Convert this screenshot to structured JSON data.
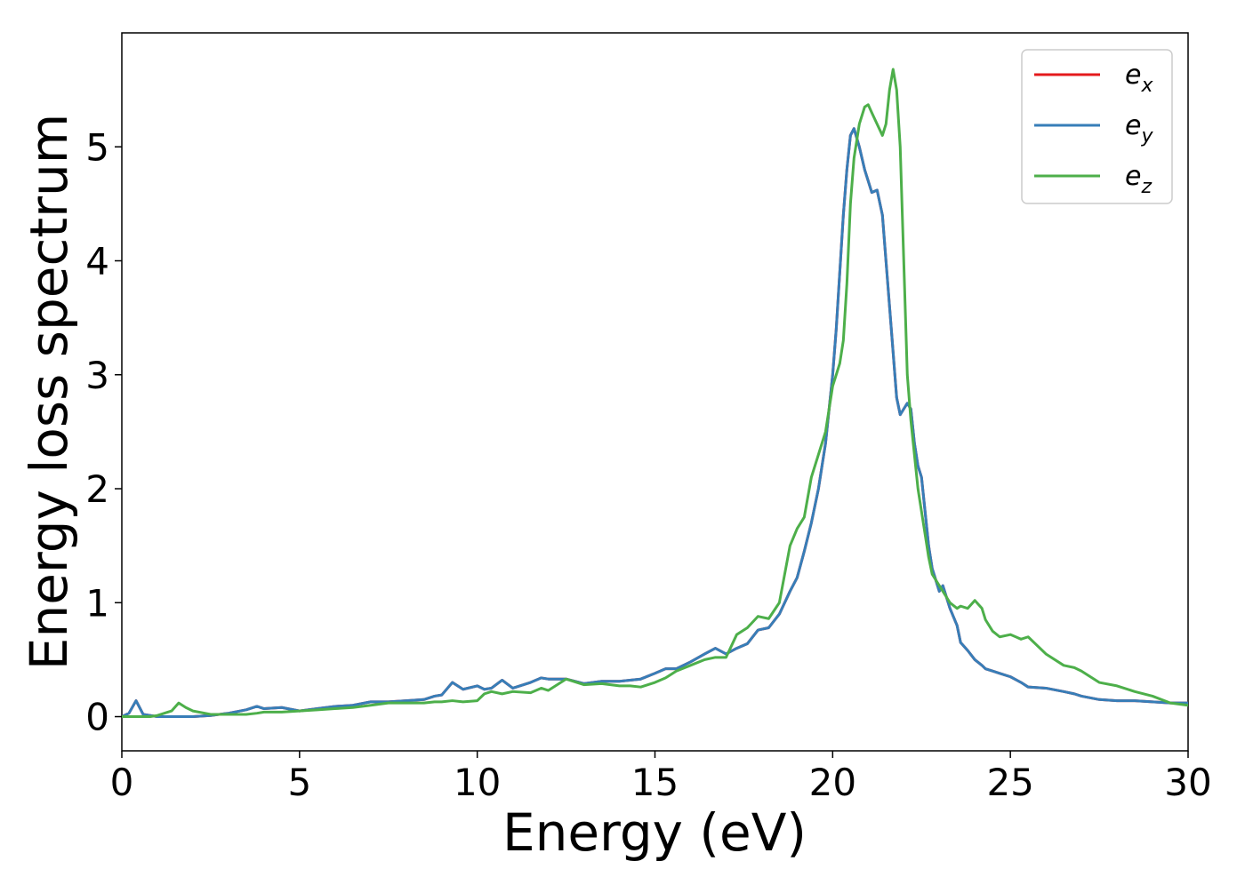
{
  "chart_data": {
    "type": "line",
    "title": "",
    "xlabel": "Energy (eV)",
    "ylabel": "Energy loss spectrum",
    "xlim": [
      0,
      30
    ],
    "ylim": [
      -0.3,
      6.0
    ],
    "xticks": [
      0,
      5,
      10,
      15,
      20,
      25,
      30
    ],
    "xtick_labels": [
      "0",
      "5",
      "10",
      "15",
      "20",
      "25",
      "30"
    ],
    "yticks": [
      0,
      1,
      2,
      3,
      4,
      5
    ],
    "ytick_labels": [
      "0",
      "1",
      "2",
      "3",
      "4",
      "5"
    ],
    "grid": false,
    "legend_position": "top-right",
    "x": [
      0,
      0.2,
      0.4,
      0.6,
      0.8,
      1.0,
      1.4,
      1.6,
      1.8,
      2.0,
      2.5,
      3.0,
      3.5,
      3.8,
      4.0,
      4.5,
      5.0,
      5.5,
      6.0,
      6.5,
      7.0,
      7.5,
      8.0,
      8.5,
      8.8,
      9.0,
      9.3,
      9.6,
      10.0,
      10.2,
      10.4,
      10.7,
      11.0,
      11.5,
      11.8,
      12.0,
      12.5,
      13.0,
      13.5,
      14.0,
      14.3,
      14.6,
      15.0,
      15.3,
      15.6,
      16.0,
      16.4,
      16.7,
      17.0,
      17.3,
      17.6,
      17.9,
      18.2,
      18.5,
      18.8,
      19.0,
      19.2,
      19.4,
      19.6,
      19.8,
      20.0,
      20.1,
      20.2,
      20.3,
      20.4,
      20.5,
      20.6,
      20.75,
      20.9,
      21.0,
      21.1,
      21.25,
      21.4,
      21.5,
      21.6,
      21.7,
      21.8,
      21.9,
      22.0,
      22.1,
      22.2,
      22.3,
      22.4,
      22.5,
      22.6,
      22.7,
      22.8,
      22.9,
      23.0,
      23.1,
      23.2,
      23.3,
      23.5,
      23.6,
      23.8,
      24.0,
      24.2,
      24.3,
      24.5,
      24.7,
      25.0,
      25.3,
      25.5,
      26.0,
      26.5,
      26.8,
      27.0,
      27.5,
      28.0,
      28.5,
      29.0,
      29.5,
      30.0
    ],
    "series": [
      {
        "name": "e_x",
        "label_base": "e",
        "label_sub": "x",
        "color": "#e41a1c",
        "values": [
          0.0,
          0.03,
          0.14,
          0.02,
          0.01,
          0.0,
          0.0,
          0.0,
          0.0,
          0.0,
          0.01,
          0.03,
          0.06,
          0.09,
          0.07,
          0.08,
          0.05,
          0.07,
          0.09,
          0.1,
          0.13,
          0.13,
          0.14,
          0.15,
          0.18,
          0.19,
          0.3,
          0.24,
          0.27,
          0.24,
          0.25,
          0.32,
          0.25,
          0.3,
          0.34,
          0.33,
          0.33,
          0.29,
          0.31,
          0.31,
          0.32,
          0.33,
          0.38,
          0.42,
          0.42,
          0.48,
          0.55,
          0.6,
          0.55,
          0.6,
          0.64,
          0.76,
          0.78,
          0.9,
          1.1,
          1.22,
          1.45,
          1.7,
          2.0,
          2.4,
          3.0,
          3.4,
          3.9,
          4.4,
          4.8,
          5.1,
          5.16,
          5.0,
          4.8,
          4.7,
          4.6,
          4.62,
          4.4,
          4.0,
          3.6,
          3.2,
          2.8,
          2.65,
          2.7,
          2.75,
          2.7,
          2.4,
          2.2,
          2.1,
          1.8,
          1.5,
          1.3,
          1.2,
          1.1,
          1.15,
          1.05,
          0.95,
          0.8,
          0.65,
          0.58,
          0.5,
          0.45,
          0.42,
          0.4,
          0.38,
          0.35,
          0.3,
          0.26,
          0.25,
          0.22,
          0.2,
          0.18,
          0.15,
          0.14,
          0.14,
          0.13,
          0.12,
          0.12
        ]
      },
      {
        "name": "e_y",
        "label_base": "e",
        "label_sub": "y",
        "color": "#377eb8",
        "values": [
          0.0,
          0.03,
          0.14,
          0.02,
          0.01,
          0.0,
          0.0,
          0.0,
          0.0,
          0.0,
          0.01,
          0.03,
          0.06,
          0.09,
          0.07,
          0.08,
          0.05,
          0.07,
          0.09,
          0.1,
          0.13,
          0.13,
          0.14,
          0.15,
          0.18,
          0.19,
          0.3,
          0.24,
          0.27,
          0.24,
          0.25,
          0.32,
          0.25,
          0.3,
          0.34,
          0.33,
          0.33,
          0.29,
          0.31,
          0.31,
          0.32,
          0.33,
          0.38,
          0.42,
          0.42,
          0.48,
          0.55,
          0.6,
          0.55,
          0.6,
          0.64,
          0.76,
          0.78,
          0.9,
          1.1,
          1.22,
          1.45,
          1.7,
          2.0,
          2.4,
          3.0,
          3.4,
          3.9,
          4.4,
          4.8,
          5.1,
          5.16,
          5.0,
          4.8,
          4.7,
          4.6,
          4.62,
          4.4,
          4.0,
          3.6,
          3.2,
          2.8,
          2.65,
          2.7,
          2.75,
          2.7,
          2.4,
          2.2,
          2.1,
          1.8,
          1.5,
          1.3,
          1.2,
          1.1,
          1.15,
          1.05,
          0.95,
          0.8,
          0.65,
          0.58,
          0.5,
          0.45,
          0.42,
          0.4,
          0.38,
          0.35,
          0.3,
          0.26,
          0.25,
          0.22,
          0.2,
          0.18,
          0.15,
          0.14,
          0.14,
          0.13,
          0.12,
          0.12
        ]
      },
      {
        "name": "e_z",
        "label_base": "e",
        "label_sub": "z",
        "color": "#4daf4a",
        "values": [
          0.0,
          0.0,
          0.0,
          0.0,
          0.0,
          0.01,
          0.05,
          0.12,
          0.08,
          0.05,
          0.02,
          0.02,
          0.02,
          0.03,
          0.04,
          0.04,
          0.05,
          0.06,
          0.07,
          0.08,
          0.1,
          0.12,
          0.12,
          0.12,
          0.13,
          0.13,
          0.14,
          0.13,
          0.14,
          0.2,
          0.22,
          0.2,
          0.22,
          0.21,
          0.25,
          0.23,
          0.33,
          0.28,
          0.29,
          0.27,
          0.27,
          0.26,
          0.3,
          0.34,
          0.4,
          0.45,
          0.5,
          0.52,
          0.52,
          0.72,
          0.78,
          0.88,
          0.86,
          1.0,
          1.5,
          1.65,
          1.75,
          2.1,
          2.3,
          2.5,
          2.9,
          3.0,
          3.1,
          3.3,
          3.8,
          4.5,
          4.9,
          5.2,
          5.35,
          5.37,
          5.3,
          5.2,
          5.1,
          5.2,
          5.5,
          5.68,
          5.5,
          5.0,
          4.0,
          3.0,
          2.6,
          2.3,
          2.0,
          1.8,
          1.6,
          1.4,
          1.25,
          1.2,
          1.15,
          1.1,
          1.05,
          1.0,
          0.95,
          0.97,
          0.95,
          1.02,
          0.95,
          0.85,
          0.75,
          0.7,
          0.72,
          0.68,
          0.7,
          0.55,
          0.45,
          0.43,
          0.4,
          0.3,
          0.27,
          0.22,
          0.18,
          0.12,
          0.1
        ]
      }
    ]
  }
}
